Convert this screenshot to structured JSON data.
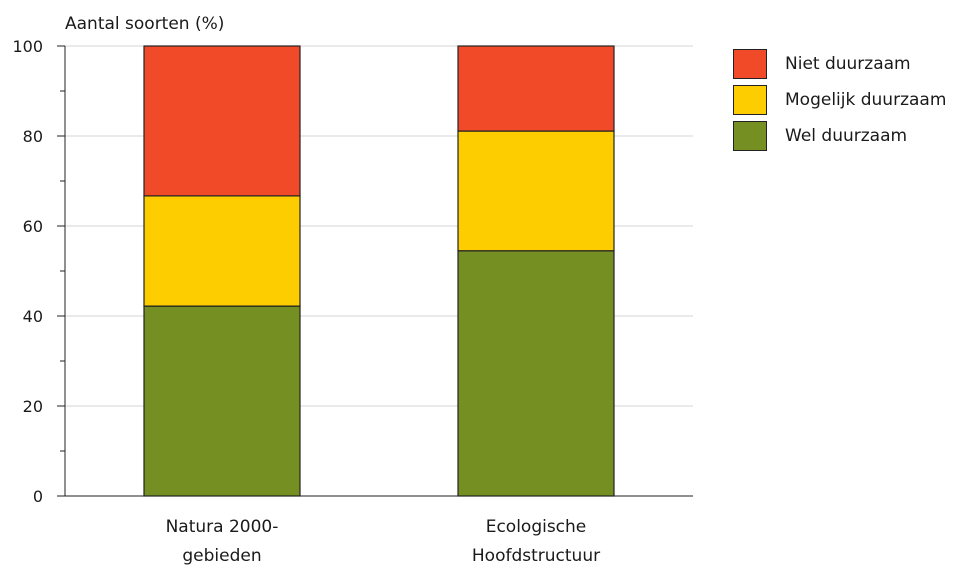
{
  "chart_data": {
    "type": "bar",
    "stacked": true,
    "ylabel": "Aantal soorten (%)",
    "ylim": [
      0,
      100
    ],
    "yticks": [
      "0",
      "20",
      "40",
      "60",
      "80",
      "100"
    ],
    "grid": true,
    "legend_position": "top-right",
    "categories": [
      [
        "Natura 2000-",
        "gebieden"
      ],
      [
        "Ecologische",
        "Hoofdstructuur"
      ]
    ],
    "series": [
      {
        "name": "Wel duurzaam",
        "color": "#768f22",
        "values": [
          42.2,
          54.5
        ]
      },
      {
        "name": "Mogelijk duurzaam",
        "color": "#fecd00",
        "values": [
          24.5,
          26.6
        ]
      },
      {
        "name": "Niet duurzaam",
        "color": "#f04a29",
        "values": [
          33.3,
          18.9
        ]
      }
    ]
  }
}
